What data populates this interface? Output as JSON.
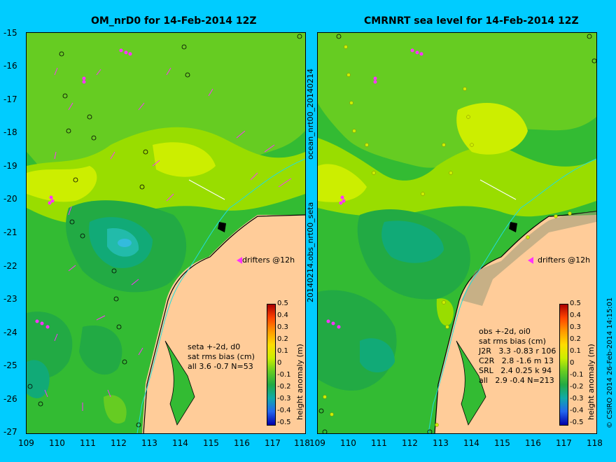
{
  "left_panel": {
    "title": "OM_nrD0 for 14-Feb-2014 12Z",
    "stats": [
      "seta +-2d, d0",
      "sat rms bias (cm)",
      "all 3.6 -0.7 N=53"
    ],
    "drifters_label": "drifters @12h"
  },
  "right_panel": {
    "title": "CMRNRT sea level  for 14-Feb-2014 12Z",
    "stats": [
      "obs +-2d, oi0",
      "sat rms bias (cm)",
      "J2R   3.3 -0.83 r 106",
      "C2R   2.8 -1.6 m 13",
      "SRL   2.4 0.25 k 94",
      "all   2.9 -0.4 N=213"
    ],
    "drifters_label": "drifters @12h"
  },
  "side_label_1": "ocean_nrt00_20140214",
  "side_label_2": "20140214.obs_nrt00_seta",
  "credit": "© CSIRO 2014   26-Feb-2014 14:15:01",
  "axes": {
    "lat_labels": [
      "-15",
      "-16",
      "-17",
      "-18",
      "-19",
      "-20",
      "-21",
      "-22",
      "-23",
      "-24",
      "-25",
      "-26",
      "-27"
    ],
    "lon_labels": [
      "109",
      "110",
      "111",
      "112",
      "113",
      "114",
      "115",
      "116",
      "117",
      "118"
    ]
  },
  "colorbar": {
    "label": "height anomaly (m)",
    "ticks": [
      "0.5",
      "0.4",
      "0.3",
      "0.2",
      "0.1",
      "0",
      "-0.1",
      "-0.2",
      "-0.3",
      "-0.4",
      "-0.5"
    ]
  },
  "colors": {
    "background": "#00ccff",
    "land": "#ffcc99",
    "drifter": "#ff33ff"
  }
}
